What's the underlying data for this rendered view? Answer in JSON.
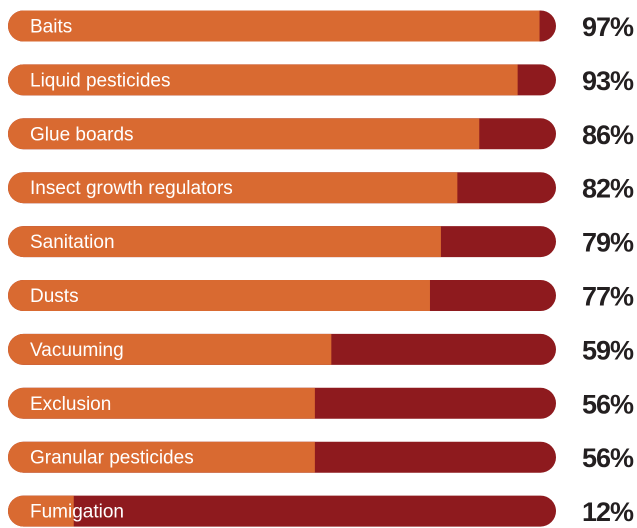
{
  "chart_data": {
    "type": "bar",
    "orientation": "horizontal",
    "categories": [
      "Baits",
      "Liquid pesticides",
      "Glue boards",
      "Insect growth regulators",
      "Sanitation",
      "Dusts",
      "Vacuuming",
      "Exclusion",
      "Granular pesticides",
      "Fumigation"
    ],
    "values": [
      97,
      93,
      86,
      82,
      79,
      77,
      59,
      56,
      56,
      12
    ],
    "value_labels": [
      "97%",
      "93%",
      "86%",
      "82%",
      "79%",
      "77%",
      "59%",
      "56%",
      "56%",
      "12%"
    ],
    "xlim": [
      0,
      100
    ],
    "color": "#d96a31",
    "track_color": "#8e1a1e"
  }
}
